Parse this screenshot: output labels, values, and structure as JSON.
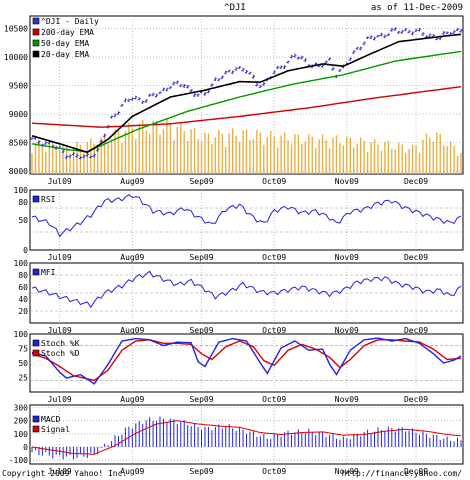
{
  "header": {
    "symbol": "^DJI",
    "as_of": "as of 11-Dec-2009"
  },
  "footer": {
    "copyright": "Copyright 2009 Yahoo! Inc.",
    "url": "http://finance.yahoo.com/"
  },
  "colors": {
    "price": "#3333cc",
    "ema200": "#cc0000",
    "ema50": "#009900",
    "ema20": "#000000",
    "volume": "#e8b040",
    "indicator": "#2222dd",
    "signal": "#dd0000",
    "panel_bg": "#ffffff",
    "grid": "#999999",
    "border": "#000000"
  },
  "x_axis": {
    "labels": [
      "Jul09",
      "Aug09",
      "Sep09",
      "Oct09",
      "Nov09",
      "Dec09"
    ],
    "label_index": [
      8,
      29,
      49,
      70,
      91,
      111
    ],
    "total_days": 125
  },
  "chart_data": [
    {
      "type": "line",
      "panel": "price",
      "legend": [
        "^DJI - Daily",
        "200-day EMA",
        "50-day EMA",
        "20-day EMA"
      ],
      "yticks": [
        8000,
        8500,
        9000,
        9500,
        10000,
        10500
      ],
      "ylim": [
        7950,
        10720
      ],
      "price_anchors": [
        [
          0,
          8550
        ],
        [
          5,
          8480
        ],
        [
          10,
          8300
        ],
        [
          15,
          8230
        ],
        [
          19,
          8350
        ],
        [
          23,
          8920
        ],
        [
          26,
          9150
        ],
        [
          29,
          9280
        ],
        [
          33,
          9250
        ],
        [
          37,
          9380
        ],
        [
          40,
          9500
        ],
        [
          44,
          9520
        ],
        [
          48,
          9320
        ],
        [
          50,
          9350
        ],
        [
          53,
          9600
        ],
        [
          56,
          9680
        ],
        [
          59,
          9820
        ],
        [
          62,
          9760
        ],
        [
          65,
          9540
        ],
        [
          67,
          9520
        ],
        [
          70,
          9720
        ],
        [
          73,
          9880
        ],
        [
          76,
          10020
        ],
        [
          78,
          9960
        ],
        [
          80,
          9900
        ],
        [
          83,
          9820
        ],
        [
          86,
          9940
        ],
        [
          88,
          9710
        ],
        [
          90,
          9790
        ],
        [
          94,
          10160
        ],
        [
          98,
          10330
        ],
        [
          102,
          10400
        ],
        [
          105,
          10450
        ],
        [
          108,
          10470
        ],
        [
          111,
          10440
        ],
        [
          115,
          10380
        ],
        [
          118,
          10330
        ],
        [
          121,
          10450
        ],
        [
          124,
          10470
        ]
      ],
      "ema200_anchors": [
        [
          0,
          8840
        ],
        [
          20,
          8770
        ],
        [
          40,
          8830
        ],
        [
          60,
          8960
        ],
        [
          80,
          9110
        ],
        [
          100,
          9290
        ],
        [
          124,
          9480
        ]
      ],
      "ema50_anchors": [
        [
          0,
          8480
        ],
        [
          10,
          8380
        ],
        [
          16,
          8340
        ],
        [
          30,
          8720
        ],
        [
          45,
          9050
        ],
        [
          60,
          9300
        ],
        [
          75,
          9520
        ],
        [
          90,
          9690
        ],
        [
          105,
          9930
        ],
        [
          124,
          10100
        ]
      ],
      "ema20_anchors": [
        [
          0,
          8620
        ],
        [
          8,
          8480
        ],
        [
          16,
          8330
        ],
        [
          22,
          8560
        ],
        [
          29,
          8960
        ],
        [
          40,
          9300
        ],
        [
          50,
          9420
        ],
        [
          60,
          9570
        ],
        [
          66,
          9560
        ],
        [
          74,
          9760
        ],
        [
          84,
          9880
        ],
        [
          90,
          9840
        ],
        [
          98,
          10060
        ],
        [
          106,
          10270
        ],
        [
          114,
          10330
        ],
        [
          124,
          10400
        ]
      ],
      "volume_anchors": [
        [
          0,
          0.45
        ],
        [
          10,
          0.38
        ],
        [
          20,
          0.5
        ],
        [
          30,
          0.7
        ],
        [
          40,
          0.72
        ],
        [
          50,
          0.55
        ],
        [
          60,
          0.6
        ],
        [
          70,
          0.55
        ],
        [
          80,
          0.52
        ],
        [
          90,
          0.5
        ],
        [
          100,
          0.45
        ],
        [
          110,
          0.38
        ],
        [
          116,
          0.6
        ],
        [
          124,
          0.32
        ]
      ]
    },
    {
      "type": "line",
      "panel": "rsi",
      "legend": [
        "RSI"
      ],
      "yticks": [
        0,
        50,
        80,
        100
      ],
      "ylim": [
        0,
        100
      ],
      "dashed": [
        30,
        70
      ],
      "anchors": [
        [
          0,
          55
        ],
        [
          5,
          45
        ],
        [
          8,
          26
        ],
        [
          13,
          42
        ],
        [
          17,
          58
        ],
        [
          21,
          82
        ],
        [
          25,
          84
        ],
        [
          29,
          91
        ],
        [
          31,
          85
        ],
        [
          35,
          65
        ],
        [
          40,
          60
        ],
        [
          44,
          70
        ],
        [
          48,
          55
        ],
        [
          52,
          42
        ],
        [
          56,
          68
        ],
        [
          60,
          75
        ],
        [
          64,
          54
        ],
        [
          67,
          44
        ],
        [
          70,
          65
        ],
        [
          74,
          72
        ],
        [
          78,
          62
        ],
        [
          82,
          65
        ],
        [
          86,
          54
        ],
        [
          88,
          44
        ],
        [
          92,
          64
        ],
        [
          96,
          68
        ],
        [
          100,
          78
        ],
        [
          104,
          82
        ],
        [
          108,
          70
        ],
        [
          112,
          62
        ],
        [
          117,
          52
        ],
        [
          121,
          45
        ],
        [
          124,
          55
        ]
      ]
    },
    {
      "type": "line",
      "panel": "mfi",
      "legend": [
        "MFI"
      ],
      "yticks": [
        20,
        40,
        60,
        80,
        100
      ],
      "ylim": [
        0,
        100
      ],
      "dashed": [
        20,
        50,
        80
      ],
      "anchors": [
        [
          0,
          58
        ],
        [
          4,
          52
        ],
        [
          8,
          44
        ],
        [
          13,
          36
        ],
        [
          17,
          30
        ],
        [
          21,
          50
        ],
        [
          26,
          62
        ],
        [
          30,
          76
        ],
        [
          34,
          83
        ],
        [
          38,
          73
        ],
        [
          42,
          64
        ],
        [
          46,
          70
        ],
        [
          50,
          56
        ],
        [
          53,
          44
        ],
        [
          57,
          52
        ],
        [
          61,
          65
        ],
        [
          66,
          52
        ],
        [
          70,
          50
        ],
        [
          74,
          55
        ],
        [
          78,
          60
        ],
        [
          82,
          54
        ],
        [
          86,
          48
        ],
        [
          90,
          55
        ],
        [
          94,
          68
        ],
        [
          98,
          73
        ],
        [
          102,
          75
        ],
        [
          106,
          65
        ],
        [
          110,
          60
        ],
        [
          114,
          52
        ],
        [
          118,
          55
        ],
        [
          121,
          45
        ],
        [
          124,
          60
        ]
      ]
    },
    {
      "type": "line",
      "panel": "stoch",
      "legend": [
        "Stoch %K",
        "Stoch %D"
      ],
      "yticks": [
        25,
        50,
        75,
        100
      ],
      "ylim": [
        0,
        100
      ],
      "dashed": [
        20,
        80
      ],
      "k_anchors": [
        [
          0,
          68
        ],
        [
          4,
          62
        ],
        [
          8,
          34
        ],
        [
          10,
          24
        ],
        [
          14,
          30
        ],
        [
          18,
          14
        ],
        [
          22,
          48
        ],
        [
          26,
          88
        ],
        [
          30,
          92
        ],
        [
          34,
          90
        ],
        [
          38,
          80
        ],
        [
          42,
          86
        ],
        [
          46,
          85
        ],
        [
          48,
          52
        ],
        [
          50,
          44
        ],
        [
          54,
          86
        ],
        [
          58,
          92
        ],
        [
          62,
          88
        ],
        [
          66,
          50
        ],
        [
          68,
          32
        ],
        [
          72,
          76
        ],
        [
          76,
          88
        ],
        [
          80,
          72
        ],
        [
          84,
          74
        ],
        [
          86,
          48
        ],
        [
          88,
          30
        ],
        [
          92,
          72
        ],
        [
          96,
          90
        ],
        [
          100,
          93
        ],
        [
          104,
          88
        ],
        [
          108,
          92
        ],
        [
          112,
          84
        ],
        [
          116,
          66
        ],
        [
          119,
          50
        ],
        [
          122,
          55
        ],
        [
          124,
          62
        ]
      ],
      "d_anchors": [
        [
          0,
          66
        ],
        [
          4,
          58
        ],
        [
          8,
          44
        ],
        [
          12,
          28
        ],
        [
          15,
          24
        ],
        [
          18,
          20
        ],
        [
          22,
          38
        ],
        [
          26,
          72
        ],
        [
          30,
          88
        ],
        [
          34,
          90
        ],
        [
          38,
          84
        ],
        [
          42,
          84
        ],
        [
          46,
          82
        ],
        [
          49,
          66
        ],
        [
          52,
          56
        ],
        [
          56,
          78
        ],
        [
          60,
          88
        ],
        [
          64,
          78
        ],
        [
          67,
          54
        ],
        [
          70,
          46
        ],
        [
          74,
          72
        ],
        [
          78,
          82
        ],
        [
          82,
          74
        ],
        [
          86,
          60
        ],
        [
          89,
          42
        ],
        [
          92,
          56
        ],
        [
          96,
          80
        ],
        [
          100,
          90
        ],
        [
          104,
          90
        ],
        [
          108,
          88
        ],
        [
          112,
          86
        ],
        [
          116,
          74
        ],
        [
          120,
          56
        ],
        [
          124,
          58
        ]
      ]
    },
    {
      "type": "line",
      "panel": "macd",
      "legend": [
        "MACD",
        "Signal"
      ],
      "yticks": [
        -100,
        0,
        100,
        200,
        300
      ],
      "ylim": [
        -130,
        320
      ],
      "macd_anchors": [
        [
          0,
          -40
        ],
        [
          6,
          -70
        ],
        [
          12,
          -80
        ],
        [
          18,
          -60
        ],
        [
          22,
          30
        ],
        [
          28,
          150
        ],
        [
          33,
          205
        ],
        [
          38,
          215
        ],
        [
          44,
          185
        ],
        [
          50,
          140
        ],
        [
          56,
          160
        ],
        [
          62,
          120
        ],
        [
          68,
          70
        ],
        [
          74,
          110
        ],
        [
          80,
          120
        ],
        [
          86,
          90
        ],
        [
          90,
          60
        ],
        [
          96,
          110
        ],
        [
          102,
          140
        ],
        [
          108,
          135
        ],
        [
          114,
          95
        ],
        [
          120,
          60
        ],
        [
          124,
          50
        ]
      ],
      "signal_anchors": [
        [
          0,
          0
        ],
        [
          6,
          -25
        ],
        [
          12,
          -50
        ],
        [
          18,
          -55
        ],
        [
          24,
          10
        ],
        [
          30,
          105
        ],
        [
          36,
          175
        ],
        [
          42,
          200
        ],
        [
          48,
          175
        ],
        [
          54,
          160
        ],
        [
          60,
          150
        ],
        [
          66,
          110
        ],
        [
          72,
          95
        ],
        [
          78,
          110
        ],
        [
          84,
          115
        ],
        [
          90,
          90
        ],
        [
          96,
          95
        ],
        [
          102,
          120
        ],
        [
          108,
          135
        ],
        [
          114,
          120
        ],
        [
          120,
          95
        ],
        [
          124,
          85
        ]
      ]
    }
  ]
}
